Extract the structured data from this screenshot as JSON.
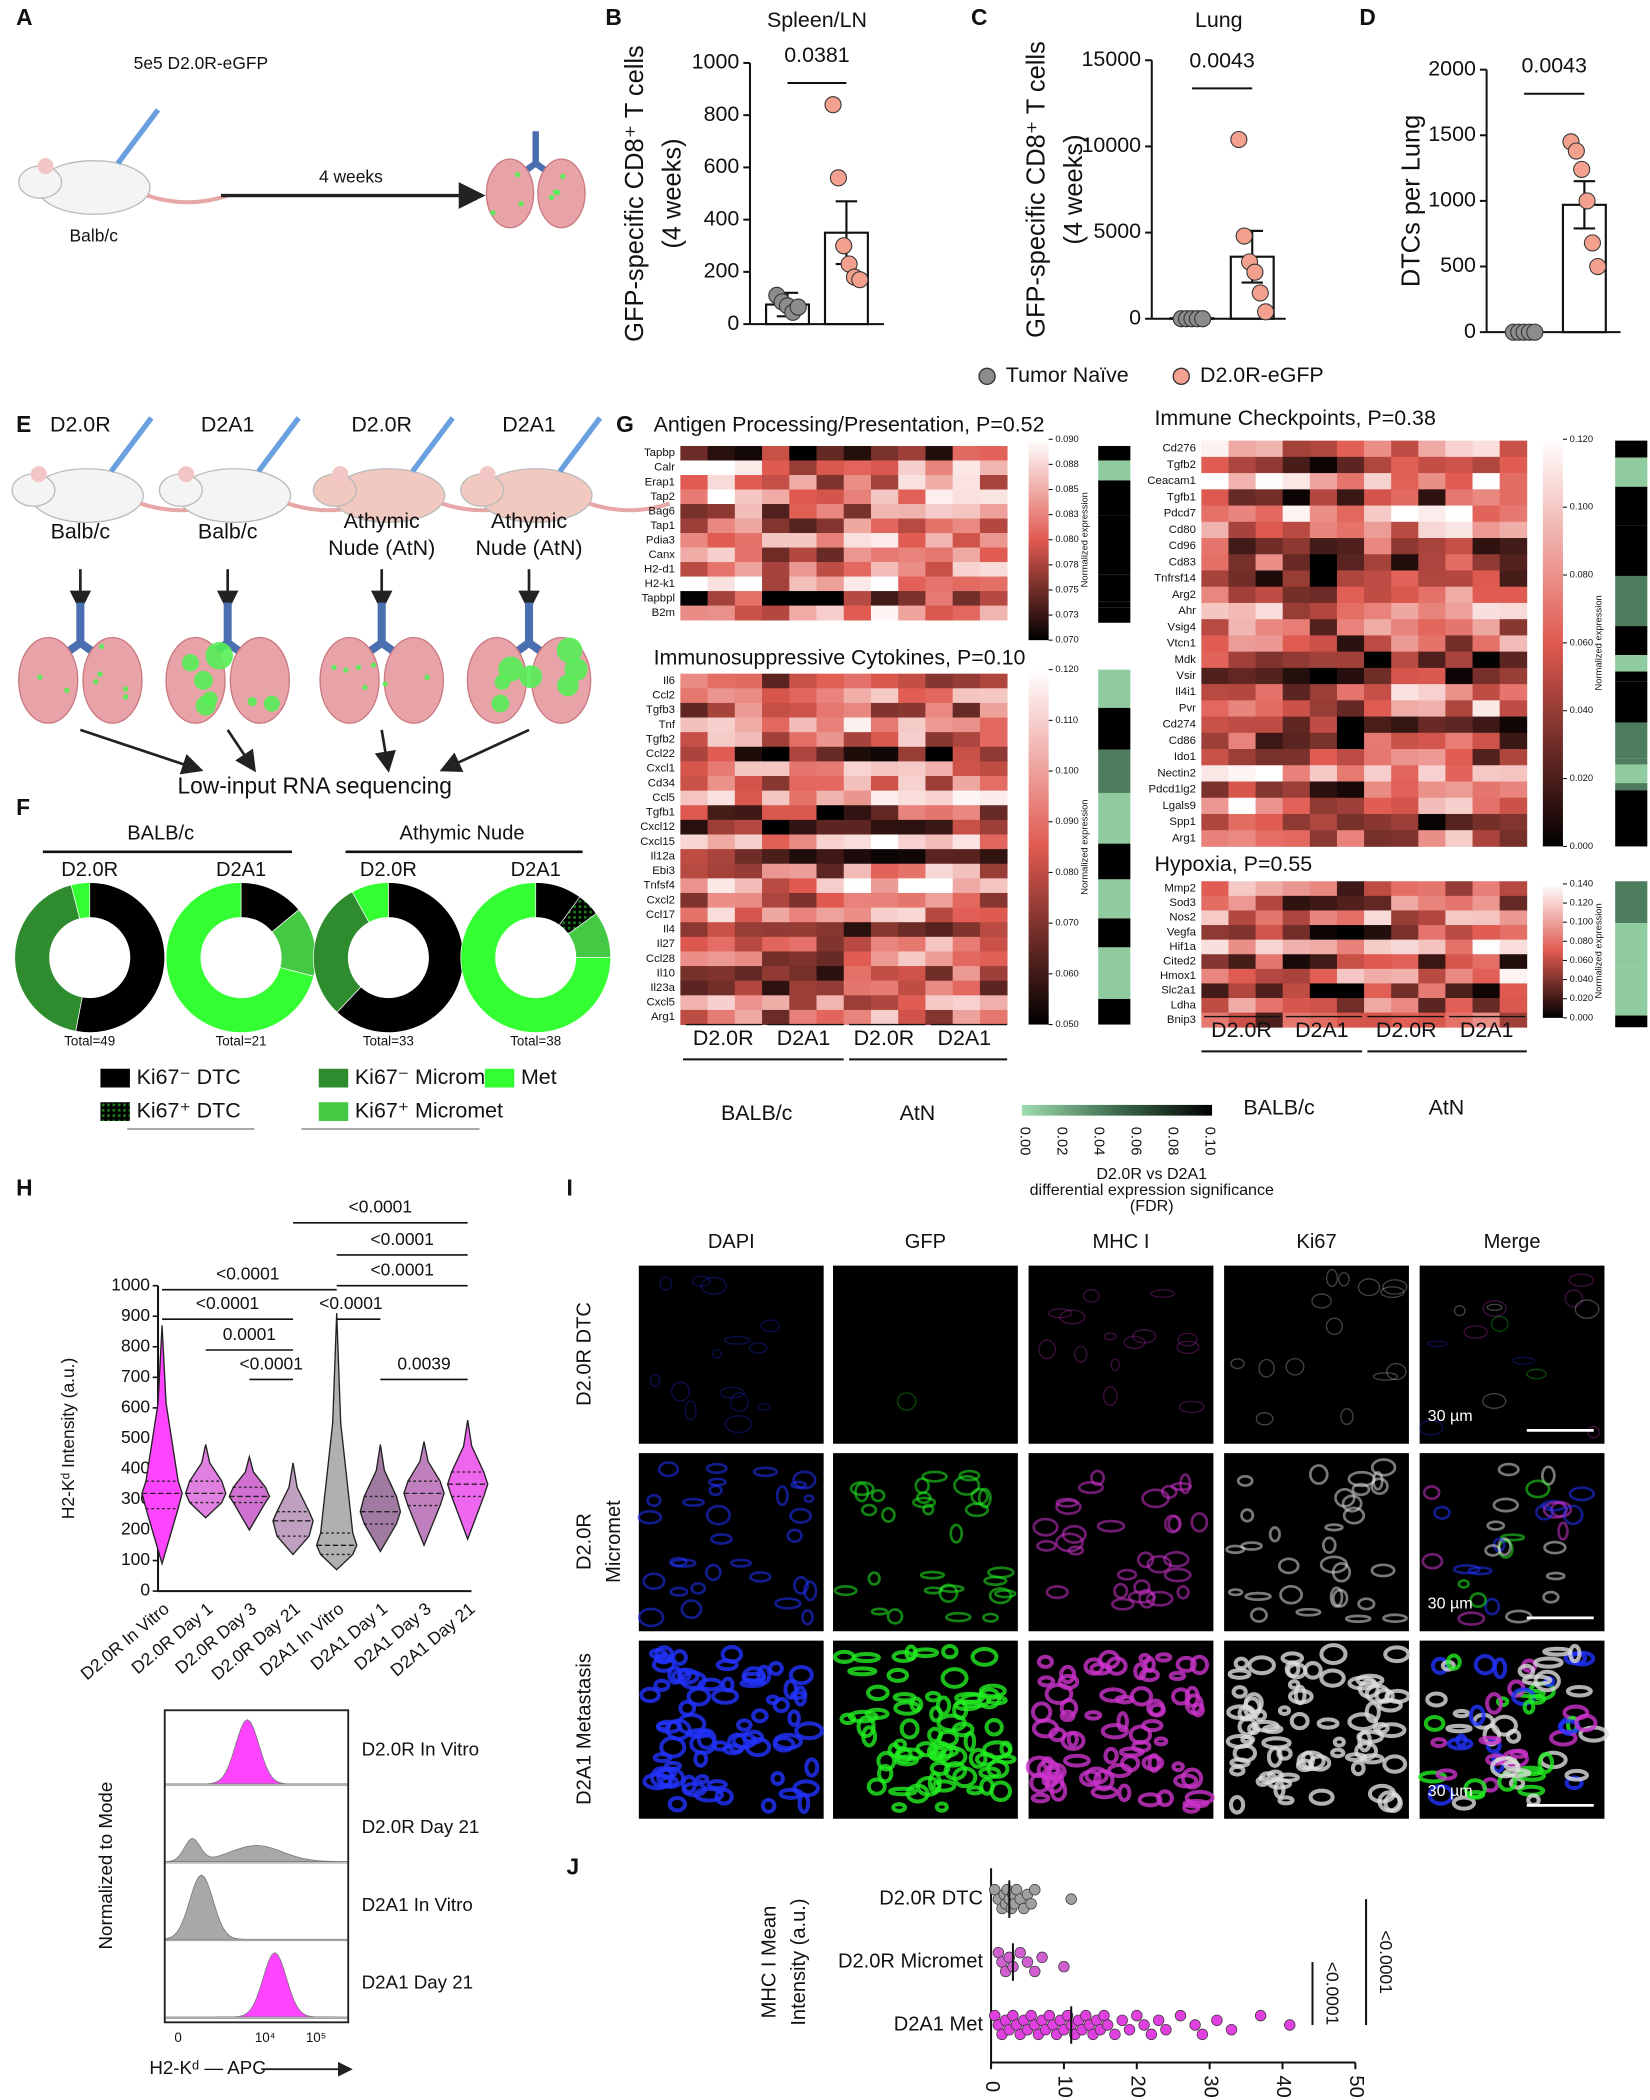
{
  "panel_labels": [
    "A",
    "B",
    "C",
    "D",
    "E",
    "F",
    "G",
    "H",
    "I",
    "J"
  ],
  "panel_a": {
    "injection": "5e5 D2.0R-eGFP",
    "mouse": "Balb/c",
    "time": "4 weeks"
  },
  "legend_bcd": [
    {
      "name": "Tumor Naïve",
      "color": "#8c8c8c"
    },
    {
      "name": "D2.0R-eGFP",
      "color": "#f4a08f"
    }
  ],
  "panel_e": {
    "models": [
      {
        "line": "D2.0R",
        "host": [
          "Balb/c"
        ]
      },
      {
        "line": "D2A1",
        "host": [
          "Balb/c"
        ]
      },
      {
        "line": "D2.0R",
        "host": [
          "Athymic",
          "Nude (AtN)"
        ]
      },
      {
        "line": "D2A1",
        "host": [
          "Athymic",
          "Nude (AtN)"
        ]
      }
    ],
    "output": "Low-input RNA sequencing"
  },
  "panel_g": {
    "heatmaps": [
      {
        "title": "Antigen Processing/Presentation, P=0.52",
        "genes": [
          "Tapbp",
          "Calr",
          "Erap1",
          "Tap2",
          "Bag6",
          "Tap1",
          "Pdia3",
          "Canx",
          "H2-d1",
          "H2-k1",
          "Tapbpl",
          "B2m"
        ],
        "colorbar_ticks": [
          "0.090",
          "0.088",
          "0.085",
          "0.083",
          "0.080",
          "0.078",
          "0.075",
          "0.073",
          "0.070"
        ]
      },
      {
        "title": "Immunosuppressive Cytokines, P=0.10",
        "genes": [
          "Il6",
          "Ccl2",
          "Tgfb3",
          "Tnf",
          "Tgfb2",
          "Ccl22",
          "Cxcl1",
          "Cd34",
          "Ccl5",
          "Tgfb1",
          "Cxcl12",
          "Cxcl15",
          "Il12a",
          "Ebi3",
          "Tnfsf4",
          "Cxcl2",
          "Ccl17",
          "Il4",
          "Il27",
          "Ccl28",
          "Il10",
          "Il23a",
          "Cxcl5",
          "Arg1"
        ],
        "colorbar_ticks": [
          "0.120",
          "0.110",
          "0.100",
          "0.090",
          "0.080",
          "0.070",
          "0.060",
          "0.050"
        ]
      },
      {
        "title": "Immune Checkpoints, P=0.38",
        "genes": [
          "Cd276",
          "Tgfb2",
          "Ceacam1",
          "Tgfb1",
          "Pdcd7",
          "Cd80",
          "Cd96",
          "Cd83",
          "Tnfrsf14",
          "Arg2",
          "Ahr",
          "Vsig4",
          "Vtcn1",
          "Mdk",
          "Vsir",
          "Il4i1",
          "Pvr",
          "Cd274",
          "Cd86",
          "Ido1",
          "Nectin2",
          "Pdcd1lg2",
          "Lgals9",
          "Spp1",
          "Arg1"
        ],
        "colorbar_ticks": [
          "0.120",
          "0.100",
          "0.080",
          "0.060",
          "0.040",
          "0.020",
          "0.000"
        ]
      },
      {
        "title": "Hypoxia, P=0.55",
        "genes": [
          "Mmp2",
          "Sod3",
          "Nos2",
          "Vegfa",
          "Hif1a",
          "Cited2",
          "Hmox1",
          "Slc2a1",
          "Ldha",
          "Bnip3"
        ],
        "colorbar_ticks": [
          "0.140",
          "0.120",
          "0.100",
          "0.080",
          "0.060",
          "0.040",
          "0.020",
          "0.000"
        ]
      }
    ],
    "colorbar_label": "Normalized expression",
    "lines": [
      "D2.0R",
      "D2A1",
      "D2.0R",
      "D2A1"
    ],
    "hosts": [
      "BALB/c",
      "AtN"
    ],
    "fdr_ticks": [
      "0.00",
      "0.02",
      "0.04",
      "0.06",
      "0.08",
      "0.10"
    ],
    "fdr_label": [
      "D2.0R vs D2A1",
      "differential expression significance",
      "(FDR)"
    ]
  },
  "panel_h_hist": {
    "rows": [
      {
        "label": "D2.0R In Vitro",
        "color": "#ff44ff"
      },
      {
        "label": "D2.0R Day 21",
        "color": "#a8a8a8"
      },
      {
        "label": "D2A1 In Vitro",
        "color": "#a8a8a8"
      },
      {
        "label": "D2A1 Day 21",
        "color": "#ff44ff"
      }
    ],
    "y_label": "Normalized to Mode",
    "x_label": "H2-Kᵈ — APC",
    "x_ticks": [
      "0",
      "10⁴",
      "10⁵"
    ]
  },
  "panel_i": {
    "columns": [
      "DAPI",
      "GFP",
      "MHC I",
      "Ki67",
      "Merge"
    ],
    "column_colors": [
      "#2233ff",
      "#22ee22",
      "#cc33cc",
      "#dddddd",
      "#6655ff"
    ],
    "rows": [
      [
        "D2.0R DTC"
      ],
      [
        "D2.0R",
        "Micromet"
      ],
      [
        "D2A1 Metastasis"
      ]
    ],
    "scale_bar": "30 µm"
  },
  "chart_data": [
    {
      "type": "bar",
      "title": "Spleen/LN",
      "y_label": [
        "GFP-specific CD8⁺ T cells",
        "(4 weeks)"
      ],
      "means": [
        75,
        350
      ],
      "errors": [
        45,
        120
      ],
      "points": [
        [
          110,
          85,
          70,
          45,
          65
        ],
        [
          840,
          560,
          300,
          230,
          180,
          170
        ]
      ],
      "ylim": [
        0,
        1000
      ],
      "yticks": [
        0,
        200,
        400,
        600,
        800,
        1000
      ],
      "annotation": "0.0381"
    },
    {
      "type": "bar",
      "title": "Lung",
      "y_label": [
        "GFP-specific CD8⁺ T cells",
        "(4 weeks)"
      ],
      "means": [
        30,
        3600
      ],
      "errors": [
        20,
        1500
      ],
      "points": [
        [
          0,
          0,
          0,
          0,
          0
        ],
        [
          10400,
          4800,
          3300,
          2700,
          1500,
          400
        ]
      ],
      "ylim": [
        0,
        15000
      ],
      "yticks": [
        0,
        5000,
        10000,
        15000
      ],
      "annotation": "0.0043"
    },
    {
      "type": "bar",
      "y_label": [
        "DTCs per Lung"
      ],
      "means": [
        0,
        970
      ],
      "errors": [
        0,
        180
      ],
      "points": [
        [
          0,
          0,
          0,
          0,
          0
        ],
        [
          1450,
          1380,
          1240,
          1000,
          680,
          500
        ]
      ],
      "ylim": [
        0,
        2000
      ],
      "yticks": [
        0,
        500,
        1000,
        1500,
        2000
      ],
      "annotation": "0.0043"
    },
    {
      "type": "donut",
      "groups": [
        "BALB/c",
        "Athymic Nude"
      ],
      "series": [
        {
          "name": "Ki67⁻ DTC",
          "color": "#000000"
        },
        {
          "name": "Ki67⁺ DTC",
          "color": "#0b3d0b"
        },
        {
          "name": "Ki67⁻ Micromet",
          "color": "#2e8b2e"
        },
        {
          "name": "Ki67⁺ Micromet",
          "color": "#45c945"
        },
        {
          "name": "Met",
          "color": "#33ff33"
        }
      ],
      "donuts": [
        {
          "label": "D2.0R",
          "total": "Total=49",
          "values": [
            53,
            0,
            43,
            0,
            4
          ]
        },
        {
          "label": "D2A1",
          "total": "Total=21",
          "values": [
            14,
            0,
            0,
            15,
            71
          ]
        },
        {
          "label": "D2.0R",
          "total": "Total=33",
          "values": [
            62,
            0,
            30,
            0,
            8
          ]
        },
        {
          "label": "D2A1",
          "total": "Total=38",
          "values": [
            10,
            5,
            0,
            10,
            75
          ]
        }
      ]
    },
    {
      "type": "violin",
      "y_label": "H2-Kᵈ Intensity (a.u.)",
      "categories": [
        "D2.0R In Vitro",
        "D2.0R Day 1",
        "D2.0R Day 3",
        "D2.0R Day 21",
        "D2A1 In Vitro",
        "D2A1 Day 1",
        "D2A1 Day 3",
        "D2A1 Day 21"
      ],
      "colors": [
        "#ff44ff",
        "#e080e0",
        "#d070d0",
        "#c0a0c0",
        "#b0b0b0",
        "#a07aa0",
        "#c080c0",
        "#ee66ee"
      ],
      "min": [
        90,
        240,
        200,
        120,
        70,
        130,
        150,
        170
      ],
      "q1": [
        270,
        290,
        290,
        180,
        120,
        220,
        280,
        310
      ],
      "median": [
        320,
        320,
        310,
        230,
        150,
        260,
        320,
        350
      ],
      "q3": [
        360,
        360,
        340,
        260,
        190,
        310,
        360,
        390
      ],
      "max": [
        870,
        480,
        440,
        420,
        910,
        480,
        490,
        560
      ],
      "ylim": [
        0,
        1000
      ],
      "yticks": [
        0,
        100,
        200,
        300,
        400,
        500,
        600,
        700,
        800,
        900,
        1000
      ],
      "comparisons": [
        {
          "from": "D2.0R Day 21",
          "to": "D2A1 Day 21",
          "text": "<0.0001"
        },
        {
          "from": "D2A1 In Vitro",
          "to": "D2A1 Day 21",
          "text": "<0.0001"
        },
        {
          "from": "D2A1 In Vitro",
          "to": "D2A1 Day 21",
          "text": "<0.0001"
        },
        {
          "from": "D2.0R In Vitro",
          "to": "D2A1 In Vitro",
          "text": "<0.0001"
        },
        {
          "from": "D2.0R In Vitro",
          "to": "D2.0R Day 21",
          "text": "<0.0001"
        },
        {
          "from": "D2A1 In Vitro",
          "to": "D2A1 Day 1",
          "text": "<0.0001"
        },
        {
          "from": "D2.0R Day 1",
          "to": "D2.0R Day 21",
          "text": "0.0001"
        },
        {
          "from": "D2A1 Day 1",
          "to": "D2A1 Day 21",
          "text": "0.0039"
        },
        {
          "from": "D2.0R Day 3",
          "to": "D2.0R Day 21",
          "text": "<0.0001"
        }
      ]
    },
    {
      "type": "dot",
      "y_label": [
        "MHC I Mean",
        "Intensity (a.u.)"
      ],
      "categories": [
        "D2.0R DTC",
        "D2.0R Micromet",
        "D2A1 Met"
      ],
      "colors": [
        "#a0a0a0",
        "#d060d0",
        "#e040e0"
      ],
      "medians": [
        2.5,
        3,
        11
      ],
      "points": [
        [
          0.5,
          1,
          1.5,
          1.8,
          2,
          2.2,
          2.5,
          2.8,
          3,
          3.2,
          3.5,
          4,
          4.5,
          5,
          5.5,
          6,
          11
        ],
        [
          1,
          1.5,
          2,
          2.5,
          3,
          4,
          5,
          6,
          7,
          10
        ],
        [
          0.5,
          1,
          1.5,
          2,
          2.5,
          3,
          3.5,
          4,
          4.5,
          5,
          5.5,
          6,
          6.5,
          7,
          7.5,
          8,
          8.5,
          9,
          9.5,
          10,
          10.5,
          11,
          11.5,
          12,
          12.5,
          13,
          13.5,
          14,
          14.5,
          15,
          15.5,
          16,
          17,
          18,
          19,
          20,
          21,
          22,
          23,
          24,
          26,
          28,
          29,
          31,
          33,
          37,
          41
        ]
      ],
      "xlim": [
        0,
        50
      ],
      "xticks": [
        0,
        10,
        20,
        30,
        40,
        50
      ],
      "comparisons": [
        {
          "from": "D2.0R Micromet",
          "to": "D2A1 Met",
          "text": "<0.0001"
        },
        {
          "from": "D2.0R DTC",
          "to": "D2A1 Met",
          "text": "<0.0001"
        }
      ]
    }
  ]
}
